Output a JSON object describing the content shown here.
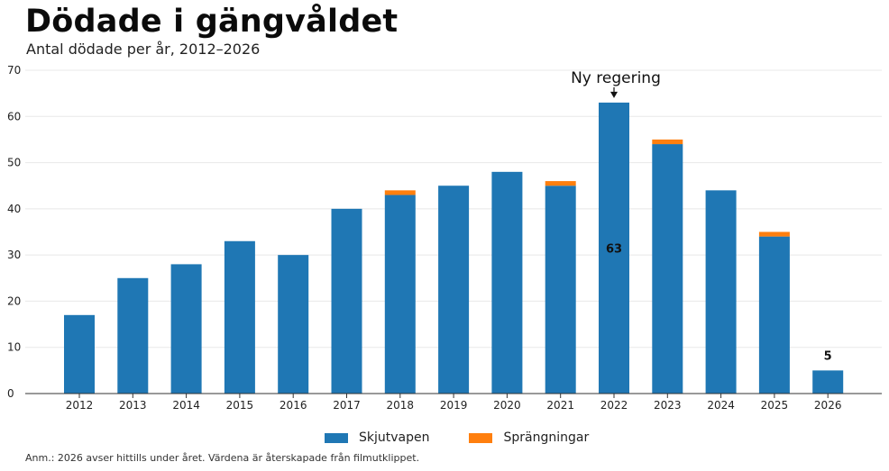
{
  "chart_data": {
    "type": "bar",
    "stacked": true,
    "title": "Dödade i gängvåldet",
    "subtitle": "Antal dödade per år, 2012–2026",
    "categories": [
      "2012",
      "2013",
      "2014",
      "2015",
      "2016",
      "2017",
      "2018",
      "2019",
      "2020",
      "2021",
      "2022",
      "2023",
      "2024",
      "2025",
      "2026"
    ],
    "series": [
      {
        "name": "Skjutvapen",
        "color": "#1f77b4",
        "values": [
          17,
          25,
          28,
          33,
          30,
          40,
          43,
          45,
          48,
          45,
          63,
          54,
          44,
          34,
          5
        ]
      },
      {
        "name": "Sprängningar",
        "color": "#ff7f0e",
        "values": [
          0,
          0,
          0,
          0,
          0,
          0,
          1,
          0,
          0,
          1,
          0,
          1,
          0,
          1,
          0
        ]
      }
    ],
    "ylim": [
      0,
      70
    ],
    "yticks": [
      0,
      10,
      20,
      30,
      40,
      50,
      60,
      70
    ],
    "xlabel": "",
    "ylabel": "",
    "grid": true,
    "legend_position": "bottom",
    "annotations": [
      {
        "category": "2022",
        "text": "Ny regering",
        "type": "arrow"
      }
    ],
    "data_labels": [
      {
        "category": "2022",
        "text": "63",
        "placement": "inside-middle"
      },
      {
        "category": "2026",
        "text": "5",
        "placement": "above"
      }
    ],
    "footnote": "Anm.: 2026 avser hittills under året. Värdena är återskapade från filmutklippet."
  }
}
